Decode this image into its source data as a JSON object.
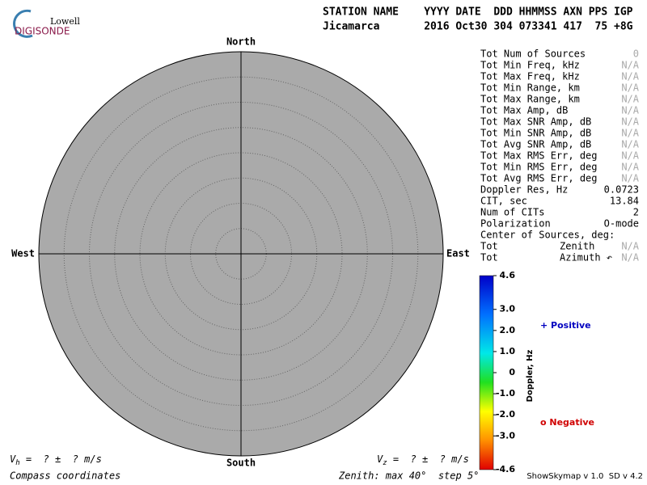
{
  "header": {
    "logo_top": "Lowell",
    "logo_bottom": "DIGISONDE",
    "line1": "STATION NAME    YYYY DATE  DDD HHMMSS AXN PPS IGP",
    "line2": "Jicamarca       2016 Oct30 304 073341 417  75 +8G"
  },
  "compass": {
    "north": "North",
    "south": "South",
    "east": "East",
    "west": "West"
  },
  "stats": [
    {
      "label": "Tot Num of Sources",
      "value": "0",
      "color": "#aaa"
    },
    {
      "label": "Tot Min Freq, kHz",
      "value": "N/A",
      "color": "#aaa"
    },
    {
      "label": "Tot Max Freq, kHz",
      "value": "N/A",
      "color": "#aaa"
    },
    {
      "label": "Tot Min Range, km",
      "value": "N/A",
      "color": "#aaa"
    },
    {
      "label": "Tot Max Range, km",
      "value": "N/A",
      "color": "#aaa"
    },
    {
      "label": "Tot Max Amp, dB",
      "value": "N/A",
      "color": "#aaa"
    },
    {
      "label": "Tot Max SNR Amp, dB",
      "value": "N/A",
      "color": "#aaa"
    },
    {
      "label": "Tot Min SNR Amp, dB",
      "value": "N/A",
      "color": "#aaa"
    },
    {
      "label": "Tot Avg SNR Amp, dB",
      "value": "N/A",
      "color": "#aaa"
    },
    {
      "label": "Tot Max RMS Err, deg",
      "value": "N/A",
      "color": "#aaa"
    },
    {
      "label": "Tot Min RMS Err, deg",
      "value": "N/A",
      "color": "#aaa"
    },
    {
      "label": "Tot Avg RMS Err, deg",
      "value": "N/A",
      "color": "#aaa"
    },
    {
      "label": "Doppler Res, Hz",
      "value": "0.0723",
      "color": "#000"
    },
    {
      "label": "CIT, sec",
      "value": "13.84",
      "color": "#000"
    },
    {
      "label": "Num of CITs",
      "value": "2",
      "color": "#000"
    },
    {
      "label": "Polarization",
      "value": "O-mode",
      "color": "#000"
    },
    {
      "label": "Center of Sources, deg:"
    },
    {
      "label": "Tot",
      "mid": "Zenith",
      "value": "N/A",
      "color": "#aaa"
    },
    {
      "label": "Tot",
      "mid": "Azimuth ↶",
      "value": "N/A",
      "color": "#aaa"
    }
  ],
  "colorbar": {
    "label": "Doppler, Hz",
    "ticks": [
      {
        "value": 4.6,
        "label": "4.6"
      },
      {
        "value": 3,
        "label": "3.0"
      },
      {
        "value": 2,
        "label": "2.0"
      },
      {
        "value": 1,
        "label": "1.0"
      },
      0,
      {
        "value": -1,
        "label": "-1.0"
      },
      {
        "value": -2,
        "label": "-2.0"
      },
      {
        "value": -3,
        "label": "-3.0"
      },
      {
        "value": -4.6,
        "label": "-4.6"
      }
    ]
  },
  "legend": {
    "positive": "+ Positive",
    "negative": "o Negative"
  },
  "footer": {
    "vh_symbol": "V",
    "vh_sub": "h",
    "vh_text": " =  ? ±  ? m/s",
    "vz_symbol": "V",
    "vz_sub": "z",
    "vz_text": " =  ? ±  ? m/s",
    "coords": "Compass coordinates",
    "zenith": "Zenith: max 40°  step 5°",
    "version": "ShowSkymap v 1.0  SD v 4.2"
  }
}
